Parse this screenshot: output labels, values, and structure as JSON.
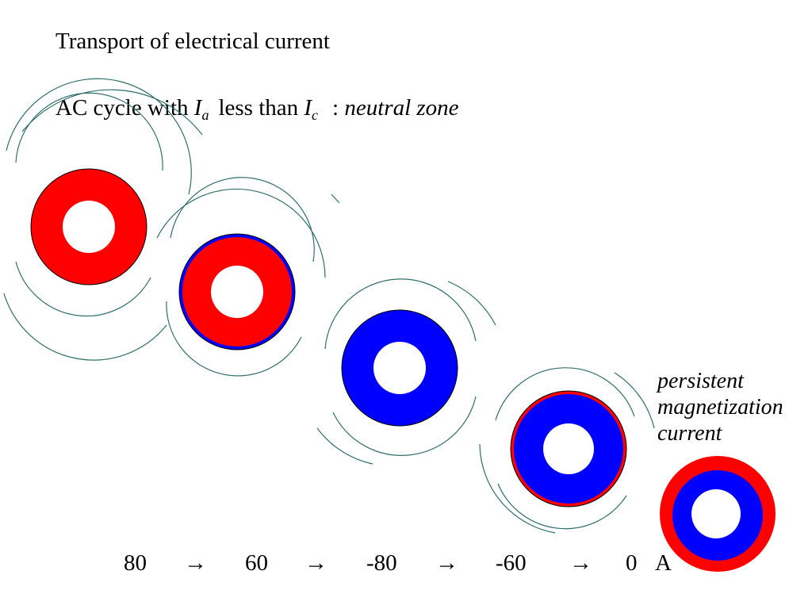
{
  "title": "Transport of electrical current",
  "subtitle": {
    "prefix": "AC cycle with",
    "var1": "I",
    "sub1": "a",
    "middle": "less than",
    "var2": "I",
    "sub2": "c",
    "colon": ":",
    "zone": "neutral zone"
  },
  "annotation": {
    "line1": "persistent",
    "line2": "magnetization",
    "line3": "current"
  },
  "sequence": {
    "values": [
      "80",
      "60",
      "-80",
      "-60",
      "0"
    ],
    "arrow": "→",
    "unit": "A"
  },
  "colors": {
    "positive": "#ff0000",
    "negative": "#0000ff",
    "field_lines": "#2f6f6a"
  }
}
